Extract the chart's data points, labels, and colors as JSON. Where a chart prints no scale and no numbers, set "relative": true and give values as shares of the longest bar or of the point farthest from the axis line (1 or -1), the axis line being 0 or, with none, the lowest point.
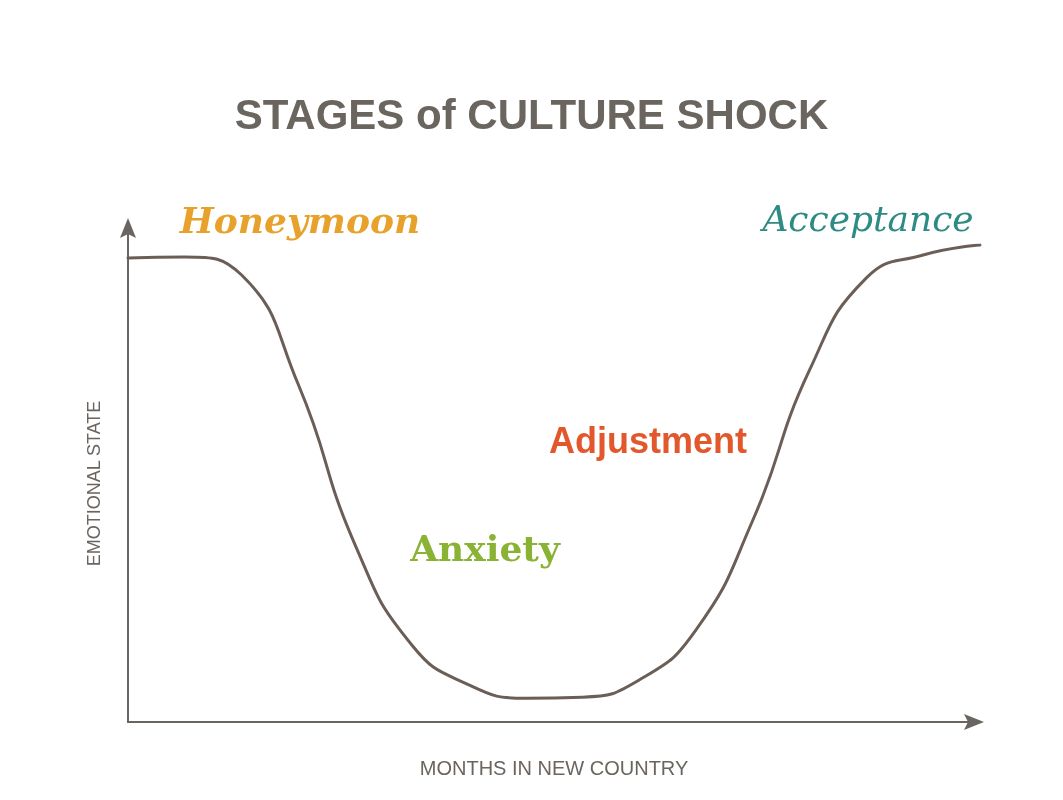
{
  "chart_data": {
    "type": "line",
    "title": "STAGES of CULTURE SHOCK",
    "xlabel": "MONTHS IN NEW COUNTRY",
    "ylabel": "EMOTIONAL STATE",
    "relative": true,
    "categories": [
      null,
      null,
      null,
      null,
      null,
      null,
      null,
      null,
      null,
      null,
      null,
      null,
      null,
      null,
      null,
      null
    ],
    "series": [
      {
        "color": "#6b5e57",
        "values": [
          0.973,
          0.975,
          0.937,
          0.707,
          0.371,
          0.161,
          0.078,
          0.05,
          0.052,
          0.088,
          0.193,
          0.423,
          0.738,
          0.931,
          0.979,
          1
        ]
      }
    ],
    "annotations": [
      "Honeymoon",
      "Anxiety",
      "Adjustment",
      "Acceptance"
    ],
    "marker": "none",
    "line_style": "solid",
    "grid": false
  }
}
